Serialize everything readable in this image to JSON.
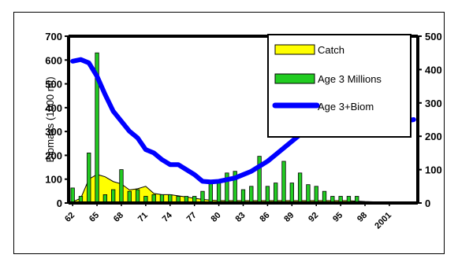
{
  "chart_data": {
    "type": "bar",
    "title": "",
    "ylabel": "Biomass (1000 mt)",
    "y2label": "",
    "ylim": [
      0,
      700
    ],
    "y2lim": [
      0,
      500
    ],
    "yticks": [
      0,
      100,
      200,
      300,
      400,
      500,
      600,
      700
    ],
    "y2ticks": [
      0,
      100,
      200,
      300,
      400,
      500
    ],
    "x_tick_labels": [
      "62",
      "65",
      "68",
      "71",
      "74",
      "77",
      "80",
      "83",
      "86",
      "89",
      "92",
      "95",
      "98",
      "2001"
    ],
    "legend_position": "top-right",
    "series": [
      {
        "name": "Catch",
        "type": "area",
        "axis": "left",
        "color": "#ffff00",
        "x": [
          1962,
          1963,
          1964,
          1965,
          1966,
          1967,
          1968,
          1969,
          1970,
          1971,
          1972,
          1973,
          1974,
          1975,
          1976,
          1977,
          1978,
          1979,
          1980,
          1981,
          1982,
          1983,
          1984,
          1985,
          1986,
          1987,
          1988,
          1989,
          1990,
          1991,
          1992,
          1993,
          1994,
          1995,
          1996,
          1997,
          1998,
          1999,
          2000,
          2001,
          2002,
          2003,
          2004
        ],
        "values": [
          5,
          20,
          100,
          120,
          110,
          90,
          80,
          55,
          60,
          70,
          40,
          35,
          35,
          30,
          25,
          20,
          15,
          12,
          10,
          10,
          10,
          10,
          10,
          10,
          10,
          10,
          10,
          10,
          10,
          10,
          10,
          10,
          10,
          10,
          10,
          8,
          6,
          5,
          5,
          5,
          5,
          5,
          5
        ]
      },
      {
        "name": "Age 3 Millions",
        "type": "bar",
        "axis": "right",
        "color": "#22cc22",
        "x": [
          1962,
          1963,
          1964,
          1965,
          1966,
          1967,
          1968,
          1969,
          1970,
          1971,
          1972,
          1973,
          1974,
          1975,
          1976,
          1977,
          1978,
          1979,
          1980,
          1981,
          1982,
          1983,
          1984,
          1985,
          1986,
          1987,
          1988,
          1989,
          1990,
          1991,
          1992,
          1993,
          1994,
          1995,
          1996,
          1997,
          1998,
          1999,
          2000,
          2001,
          2002,
          2003,
          2004
        ],
        "values": [
          45,
          20,
          150,
          450,
          25,
          40,
          100,
          35,
          40,
          20,
          25,
          25,
          25,
          20,
          20,
          20,
          35,
          60,
          65,
          90,
          95,
          40,
          50,
          140,
          50,
          60,
          125,
          60,
          90,
          55,
          50,
          35,
          20,
          20,
          20,
          20,
          3,
          3,
          3,
          3,
          3,
          3,
          3
        ]
      },
      {
        "name": "Age 3+Biom",
        "type": "line",
        "axis": "right",
        "color": "#0000ff",
        "x": [
          1962,
          1963,
          1964,
          1965,
          1966,
          1967,
          1968,
          1969,
          1970,
          1971,
          1972,
          1973,
          1974,
          1975,
          1976,
          1977,
          1978,
          1979,
          1980,
          1981,
          1982,
          1983,
          1984,
          1985,
          1986,
          1987,
          1988,
          1989,
          1990,
          1991,
          1992,
          1993,
          1994,
          1995,
          1996,
          1997,
          1998,
          1999,
          2000,
          2001,
          2002,
          2003,
          2004
        ],
        "values": [
          425,
          430,
          420,
          380,
          325,
          275,
          245,
          215,
          195,
          160,
          150,
          130,
          115,
          115,
          100,
          85,
          65,
          63,
          65,
          70,
          75,
          85,
          95,
          110,
          125,
          145,
          165,
          185,
          205,
          220,
          230,
          240,
          240,
          240,
          240,
          240,
          240,
          238,
          238,
          240,
          243,
          246,
          250
        ]
      }
    ]
  }
}
